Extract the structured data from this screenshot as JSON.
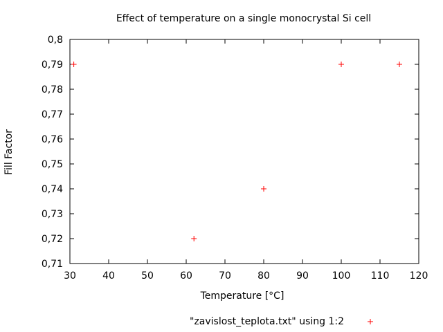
{
  "chart_data": {
    "type": "scatter",
    "title": "Effect of temperature on a single monocrystal Si cell",
    "xlabel": "Temperature [°C]",
    "ylabel": "Fill Factor",
    "xlim": [
      30,
      120
    ],
    "ylim": [
      0.71,
      0.8
    ],
    "xticks": [
      "30",
      "40",
      "50",
      "60",
      "70",
      "80",
      "90",
      "100",
      "110",
      "120"
    ],
    "yticks": [
      "0,71",
      "0,72",
      "0,73",
      "0,74",
      "0,75",
      "0,76",
      "0,77",
      "0,78",
      "0,79",
      "0,8"
    ],
    "grid": false,
    "legend_position": "bottom",
    "series": [
      {
        "name": "\"zavislost_teplota.txt\" using 1:2",
        "color": "#ff0000",
        "marker": "plus",
        "x": [
          31,
          62,
          80,
          100,
          115
        ],
        "y": [
          0.79,
          0.72,
          0.74,
          0.79,
          0.79
        ]
      }
    ]
  }
}
